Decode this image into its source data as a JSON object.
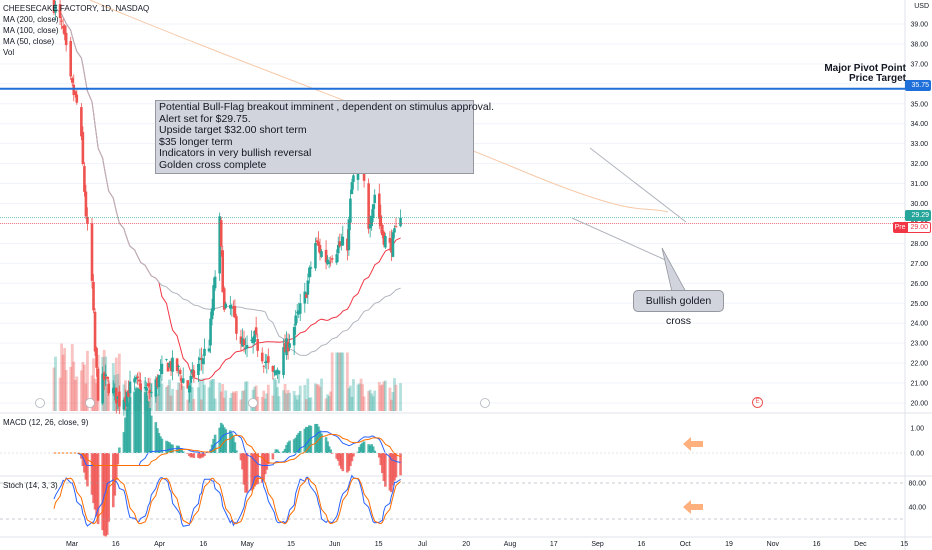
{
  "legend": {
    "symbol": "CHEESECAKE FACTORY, 1D, NASDAQ",
    "ma200": "MA (200, close)",
    "ma100": "MA (100, close)",
    "ma50": "MA (50, close)",
    "vol": "Vol",
    "macd": "MACD (12, 26, close, 9)",
    "stoch": "Stoch (14, 3, 3)"
  },
  "currency": "USD",
  "price_ticks": [
    "39.00",
    "38.00",
    "37.00",
    "36.00",
    "35.00",
    "34.00",
    "33.00",
    "32.00",
    "31.00",
    "30.00",
    "29.00",
    "28.00",
    "27.00",
    "26.00",
    "25.00",
    "24.00",
    "23.00",
    "22.00",
    "21.00",
    "20.00"
  ],
  "macd_ticks": [
    "1.00",
    "0.00"
  ],
  "stoch_ticks": [
    "80.00",
    "40.00"
  ],
  "time_labels": [
    "Mar",
    "16",
    "Apr",
    "16",
    "May",
    "15",
    "Jun",
    "15",
    "Jul",
    "20",
    "Aug",
    "17",
    "Sep",
    "16",
    "Oct",
    "19",
    "Nov",
    "16",
    "Dec",
    "15"
  ],
  "tags": {
    "pivot_price": "35.75",
    "last_price": "29.29",
    "pre_label": "Pre",
    "pre_price": "29.00"
  },
  "annotations": {
    "callout_lines": [
      "Potential Bull-Flag breakout imminent , dependent on stimulus approval.",
      "Alert set for $29.75.",
      "Upside target $32.00 short term",
      "$35 longer term",
      "Indicators in very bullish reversal",
      "Golden cross complete"
    ],
    "golden_cross": "Bullish golden cross",
    "pivot_line1": "Major Pivot Point",
    "pivot_line2": "Price Target",
    "earnings_marker": "E"
  },
  "colors": {
    "up": "#26a69a",
    "down": "#ef5350",
    "pivot_line": "#1e6fd9",
    "ma50": "#f23645",
    "ma100": "#b2b5be",
    "ma200": "#f7c9a8",
    "macd_line": "#2962ff",
    "signal_line": "#ff6d00",
    "arrow": "#ffb07c"
  },
  "chart_data": {
    "type": "candlestick",
    "symbol": "CHEESECAKE FACTORY",
    "interval": "1D",
    "exchange": "NASDAQ",
    "y_axis_unit": "USD",
    "y_range": [
      19.6,
      40.0
    ],
    "reference_levels": [
      {
        "label": "Major Pivot Point / Price Target",
        "value": 35.75
      },
      {
        "label": "Pre",
        "value": 29.0
      }
    ],
    "last_price": 29.29,
    "close_path_anchors": [
      {
        "date": "2020-02-20",
        "close": 40.0
      },
      {
        "date": "2020-02-26",
        "close": 38.6
      },
      {
        "date": "2020-03-02",
        "close": 36.0
      },
      {
        "date": "2020-03-06",
        "close": 35.0
      },
      {
        "date": "2020-03-09",
        "close": 33.0
      },
      {
        "date": "2020-03-12",
        "close": 29.5
      },
      {
        "date": "2020-03-16",
        "close": 26.0
      },
      {
        "date": "2020-03-18",
        "close": 22.5
      },
      {
        "date": "2020-03-20",
        "close": 20.5
      },
      {
        "date": "2020-03-24",
        "close": 21.2
      },
      {
        "date": "2020-04-03",
        "close": 20.1
      },
      {
        "date": "2020-04-13",
        "close": 21.0
      },
      {
        "date": "2020-04-24",
        "close": 20.5
      },
      {
        "date": "2020-05-04",
        "close": 22.0
      },
      {
        "date": "2020-05-11",
        "close": 21.7
      },
      {
        "date": "2020-05-18",
        "close": 20.8
      },
      {
        "date": "2020-06-01",
        "close": 23.0
      },
      {
        "date": "2020-06-08",
        "close": 29.0
      },
      {
        "date": "2020-06-11",
        "close": 24.5
      },
      {
        "date": "2020-06-15",
        "close": 24.8
      },
      {
        "date": "2020-06-25",
        "close": 22.5
      },
      {
        "date": "2020-07-01",
        "close": 23.2
      },
      {
        "date": "2020-07-13",
        "close": 21.3
      },
      {
        "date": "2020-07-22",
        "close": 22.8
      },
      {
        "date": "2020-08-03",
        "close": 25.3
      },
      {
        "date": "2020-08-10",
        "close": 28.0
      },
      {
        "date": "2020-08-17",
        "close": 27.2
      },
      {
        "date": "2020-08-24",
        "close": 27.8
      },
      {
        "date": "2020-08-31",
        "close": 28.0
      },
      {
        "date": "2020-09-03",
        "close": 31.0
      },
      {
        "date": "2020-09-09",
        "close": 32.2
      },
      {
        "date": "2020-09-14",
        "close": 29.0
      },
      {
        "date": "2020-09-18",
        "close": 30.5
      },
      {
        "date": "2020-09-23",
        "close": 28.5
      },
      {
        "date": "2020-09-28",
        "close": 27.8
      },
      {
        "date": "2020-10-02",
        "close": 28.5
      },
      {
        "date": "2020-10-05",
        "close": 29.3
      }
    ],
    "indicators": [
      "MA (200, close)",
      "MA (100, close)",
      "MA (50, close)",
      "Vol",
      "MACD (12, 26, close, 9)",
      "Stoch (14, 3, 3)"
    ],
    "macd_range": [
      -0.55,
      1.25
    ],
    "stoch_range": [
      0,
      100
    ],
    "stoch_levels": [
      80,
      20
    ]
  }
}
